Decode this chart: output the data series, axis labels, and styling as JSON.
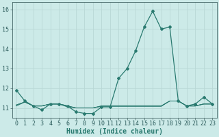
{
  "title": "",
  "xlabel": "Humidex (Indice chaleur)",
  "ylabel": "",
  "x": [
    0,
    1,
    2,
    3,
    4,
    5,
    6,
    7,
    8,
    9,
    10,
    11,
    12,
    13,
    14,
    15,
    16,
    17,
    18,
    19,
    20,
    21,
    22,
    23
  ],
  "y_main": [
    11.9,
    11.35,
    11.1,
    10.9,
    11.2,
    11.2,
    11.1,
    10.8,
    10.72,
    10.72,
    11.05,
    11.05,
    12.5,
    13.0,
    13.9,
    15.1,
    15.9,
    15.0,
    15.1,
    11.35,
    11.1,
    11.2,
    11.55,
    11.2
  ],
  "y_line1": [
    11.15,
    11.3,
    11.1,
    11.1,
    11.2,
    11.2,
    11.1,
    11.0,
    11.0,
    11.0,
    11.1,
    11.1,
    11.1,
    11.1,
    11.1,
    11.1,
    11.1,
    11.1,
    11.35,
    11.35,
    11.1,
    11.1,
    11.2,
    11.2
  ],
  "y_line2": [
    11.1,
    11.3,
    11.1,
    11.1,
    11.2,
    11.2,
    11.1,
    11.0,
    11.0,
    11.0,
    11.1,
    11.1,
    11.1,
    11.1,
    11.1,
    11.1,
    11.1,
    11.1,
    11.35,
    11.35,
    11.1,
    11.1,
    11.2,
    11.2
  ],
  "y_line3": [
    11.15,
    11.3,
    11.1,
    11.1,
    11.2,
    11.2,
    11.05,
    11.0,
    11.0,
    11.0,
    11.08,
    11.08,
    11.08,
    11.08,
    11.08,
    11.08,
    11.08,
    11.08,
    11.35,
    11.35,
    11.1,
    11.1,
    11.2,
    11.2
  ],
  "ylim": [
    10.5,
    16.35
  ],
  "xlim": [
    -0.5,
    23.5
  ],
  "yticks": [
    11,
    12,
    13,
    14,
    15,
    16
  ],
  "xticks": [
    0,
    1,
    2,
    3,
    4,
    5,
    6,
    7,
    8,
    9,
    10,
    11,
    12,
    13,
    14,
    15,
    16,
    17,
    18,
    19,
    20,
    21,
    22,
    23
  ],
  "line_color": "#2a7a70",
  "bg_color": "#cceae8",
  "grid_color_major": "#b8d8d5",
  "grid_color_minor": "#d4ecea",
  "tick_label_fontsize": 6.0,
  "xlabel_fontsize": 7.0
}
